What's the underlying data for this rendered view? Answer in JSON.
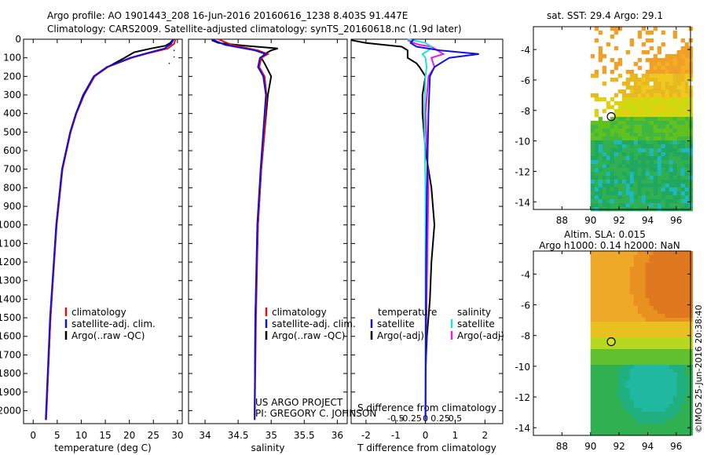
{
  "header": {
    "line1": "Argo profile: AO 1901443_208 16-Jun-2016 20160616_1238 8.403S 91.447E",
    "line2": "Climatology: CARS2009. Satellite-adjusted climatology: synTS_20160618.nc (1.9d later)"
  },
  "colors": {
    "climatology": "#e01010",
    "satellite": "#1010e0",
    "argo": "#000000",
    "argo_adj_salinity": "#e020e0",
    "satellite_salinity": "#20e0e0"
  },
  "chart_data": [
    {
      "type": "line",
      "name": "temperature-profile",
      "xlabel": "temperature (deg C)",
      "ylabel": "",
      "xlim": [
        -2,
        31
      ],
      "ylim": [
        2070,
        0
      ],
      "xticks": [
        0,
        5,
        10,
        15,
        20,
        25,
        30
      ],
      "yticks": [
        0,
        100,
        200,
        300,
        400,
        500,
        600,
        700,
        800,
        900,
        1000,
        1100,
        1200,
        1300,
        1400,
        1500,
        1600,
        1700,
        1800,
        1900,
        2000
      ],
      "legend": [
        "climatology",
        "satellite-adj. clim.",
        "Argo(..raw -QC)"
      ],
      "series": [
        {
          "name": "climatology",
          "depth": [
            0,
            25,
            50,
            75,
            100,
            150,
            200,
            300,
            400,
            500,
            700,
            1000,
            1500,
            2050
          ],
          "values": [
            29.6,
            29.3,
            28.0,
            24.0,
            20.5,
            15.5,
            12.8,
            10.6,
            9.0,
            7.8,
            6.1,
            4.9,
            3.6,
            2.7
          ]
        },
        {
          "name": "satellite-adj. clim.",
          "depth": [
            0,
            25,
            50,
            75,
            100,
            150,
            200,
            300,
            400,
            500,
            700,
            1000,
            1500,
            2050
          ],
          "values": [
            29.2,
            28.7,
            27.3,
            23.6,
            20.2,
            15.3,
            12.6,
            10.5,
            8.9,
            7.7,
            6.0,
            4.8,
            3.5,
            2.6
          ]
        },
        {
          "name": "Argo(..raw -QC)",
          "depth": [
            5,
            20,
            35,
            50,
            70,
            100,
            150,
            200,
            300,
            400,
            500,
            700,
            1000,
            1500,
            2030
          ],
          "values": [
            29.0,
            28.5,
            27.5,
            24.5,
            21.0,
            19.0,
            15.5,
            12.6,
            10.4,
            8.9,
            7.7,
            6.0,
            4.8,
            3.6,
            2.7
          ]
        }
      ]
    },
    {
      "type": "line",
      "name": "salinity-profile",
      "xlabel": "salinity",
      "xlim": [
        33.75,
        36.15
      ],
      "ylim": [
        2070,
        0
      ],
      "xticks": [
        34,
        34.5,
        35,
        35.5,
        36
      ],
      "legend": [
        "climatology",
        "satellite-adj. clim.",
        "Argo(..raw -QC)"
      ],
      "annotation": [
        "US ARGO PROJECT",
        "PI: GREGORY C. JOHNSON"
      ],
      "series": [
        {
          "name": "climatology",
          "depth": [
            0,
            30,
            60,
            80,
            100,
            150,
            200,
            300,
            500,
            700,
            1000,
            1500,
            2050
          ],
          "values": [
            34.2,
            34.4,
            34.8,
            34.95,
            34.85,
            34.82,
            34.9,
            34.93,
            34.9,
            34.85,
            34.8,
            34.77,
            34.75
          ]
        },
        {
          "name": "satellite-adj. clim.",
          "depth": [
            0,
            30,
            60,
            80,
            100,
            150,
            200,
            300,
            500,
            700,
            1000,
            1500,
            2050
          ],
          "values": [
            34.1,
            34.3,
            34.75,
            34.92,
            34.83,
            34.8,
            34.88,
            34.92,
            34.88,
            34.84,
            34.79,
            34.76,
            34.75
          ]
        },
        {
          "name": "Argo(..raw -QC)",
          "depth": [
            5,
            20,
            35,
            50,
            60,
            80,
            100,
            130,
            200,
            300,
            500,
            700,
            1000,
            1500,
            2030
          ],
          "values": [
            34.1,
            34.2,
            34.6,
            35.1,
            35.0,
            34.9,
            34.85,
            34.9,
            35.0,
            34.95,
            34.9,
            34.85,
            34.8,
            34.76,
            34.75
          ]
        }
      ]
    },
    {
      "type": "line",
      "name": "difference-profile",
      "xlabel": "T difference from climatology",
      "xlabel_top": "S difference from climatology",
      "xlim": [
        -2.5,
        2.6
      ],
      "ylim": [
        2070,
        0
      ],
      "xticks": [
        -2,
        -1,
        0,
        1,
        2
      ],
      "sticks": [
        -0.5,
        -0.25,
        0,
        0.25,
        0.5
      ],
      "legend_titles": [
        "temperature",
        "salinity"
      ],
      "legend": [
        "satellite",
        "Argo(-adj)",
        "satellite",
        "Argo(-adj)"
      ],
      "series": [
        {
          "name": "T satellite",
          "depth": [
            0,
            20,
            40,
            60,
            80,
            100,
            150,
            200,
            400,
            800,
            1200,
            1600,
            2050
          ],
          "values": [
            -0.4,
            -0.5,
            -0.3,
            0.5,
            1.8,
            0.8,
            0.3,
            0.15,
            0.1,
            0.05,
            0.02,
            0.01,
            0.0
          ]
        },
        {
          "name": "T Argo(-adj)",
          "depth": [
            5,
            20,
            40,
            60,
            80,
            100,
            130,
            150,
            200,
            300,
            400,
            600,
            800,
            1000,
            1200,
            1400,
            1600,
            1800,
            2030
          ],
          "values": [
            -2.5,
            -2.0,
            -0.8,
            -0.6,
            -0.6,
            -0.6,
            -0.3,
            -0.2,
            0.0,
            -0.1,
            -0.1,
            0.0,
            0.2,
            0.3,
            0.2,
            0.15,
            0.05,
            0.0,
            0.0
          ]
        },
        {
          "name": "S satellite",
          "depth": [
            0,
            20,
            40,
            60,
            80,
            100,
            150,
            200,
            400,
            800,
            1200,
            1600,
            2050
          ],
          "values": [
            -0.3,
            0.0,
            0.1,
            0.05,
            -0.05,
            0.0,
            0.02,
            0.0,
            -0.02,
            0.0,
            0.0,
            0.0,
            0.0
          ]
        },
        {
          "name": "S Argo(-adj)",
          "depth": [
            5,
            20,
            30,
            40,
            60,
            80,
            100,
            150,
            200,
            400,
            800,
            1200,
            1600,
            2030
          ],
          "values": [
            -0.3,
            -0.2,
            -0.1,
            0.1,
            0.2,
            0.3,
            0.1,
            0.15,
            0.05,
            0.0,
            0.05,
            0.03,
            0.01,
            0.0
          ]
        }
      ]
    },
    {
      "type": "heatmap",
      "name": "sst-map",
      "title": "sat. SST: 29.4  Argo: 29.1",
      "xlim": [
        86,
        97
      ],
      "ylim": [
        -14.5,
        -2.5
      ],
      "xticks": [
        88,
        90,
        92,
        94,
        96
      ],
      "yticks": [
        -4,
        -6,
        -8,
        -10,
        -12,
        -14
      ],
      "argo_position": {
        "lon": 91.447,
        "lat": -8.403
      }
    },
    {
      "type": "heatmap",
      "name": "sla-map",
      "title": "Altim. SLA: 0.015",
      "subtitle": "Argo h1000: 0.14 h2000: NaN",
      "xlim": [
        86,
        97
      ],
      "ylim": [
        -14.5,
        -2.5
      ],
      "xticks": [
        88,
        90,
        92,
        94,
        96
      ],
      "yticks": [
        -4,
        -6,
        -8,
        -10,
        -12,
        -14
      ],
      "argo_position": {
        "lon": 91.447,
        "lat": -8.403
      }
    }
  ],
  "side_label": "©IMOS 25-Jun-2016 20:38:40"
}
